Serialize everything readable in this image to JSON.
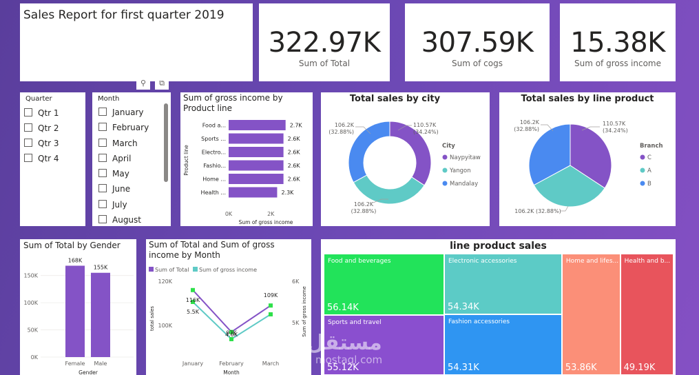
{
  "title_card": {
    "title": "Sales Report for first quarter 2019"
  },
  "kpis": [
    {
      "value": "322.97K",
      "label": "Sum of Total"
    },
    {
      "value": "307.59K",
      "label": "Sum of cogs"
    },
    {
      "value": "15.38K",
      "label": "Sum of gross income"
    }
  ],
  "quarter_slicer": {
    "header": "Quarter",
    "items": [
      "Qtr 1",
      "Qtr 2",
      "Qtr 3",
      "Qtr 4"
    ]
  },
  "month_slicer": {
    "header": "Month",
    "items": [
      "January",
      "February",
      "March",
      "April",
      "May",
      "June",
      "July",
      "August"
    ]
  },
  "visual_header_icons": [
    "filter-icon",
    "focus-mode-icon"
  ],
  "colors": {
    "purple": "#8453c6",
    "teal": "#5fcac6",
    "blue": "#4a8af0",
    "treemap_green": "#22e35a",
    "treemap_teal": "#5ccbc6",
    "treemap_salmon": "#fb8f78",
    "treemap_red": "#e8545c",
    "treemap_purple": "#8a4fcf",
    "treemap_blue": "#2f95f2"
  },
  "chart_data": [
    {
      "id": "gross_by_product",
      "type": "bar",
      "orientation": "horizontal",
      "title": "Sum of gross income by Product line",
      "categories": [
        "Food a...",
        "Sports ...",
        "Electro...",
        "Fashio...",
        "Home ...",
        "Health ..."
      ],
      "values": [
        2.7,
        2.6,
        2.6,
        2.6,
        2.6,
        2.3
      ],
      "data_labels": [
        "2.7K",
        "2.6K",
        "2.6K",
        "2.6K",
        "2.6K",
        "2.3K"
      ],
      "xticks": [
        "0K",
        "2K"
      ],
      "xlim": [
        0,
        3.2
      ],
      "xlabel": "Sum of gross income",
      "ylabel": "Product line"
    },
    {
      "id": "sales_by_city",
      "type": "pie",
      "donut": true,
      "title": "Total sales by city",
      "legend_title": "City",
      "labels": [
        "Naypyitaw",
        "Yangon",
        "Mandalay"
      ],
      "values": [
        110.57,
        106.2,
        106.2
      ],
      "data_labels": [
        [
          "110.57K",
          "(34.24%)"
        ],
        [
          "106.2K",
          "(32.88%)"
        ],
        [
          "106.2K",
          "(32.88%)"
        ]
      ],
      "legend": "right"
    },
    {
      "id": "sales_by_branch",
      "type": "pie",
      "donut": false,
      "title": "Total sales by line product",
      "legend_title": "Branch",
      "labels": [
        "C",
        "A",
        "B"
      ],
      "values": [
        110.57,
        106.2,
        106.2
      ],
      "data_labels": [
        [
          "110.57K",
          "(34.24%)"
        ],
        [
          "106.2K (32.88%)"
        ],
        [
          "106.2K",
          "(32.88%)"
        ]
      ],
      "legend": "right"
    },
    {
      "id": "total_by_gender",
      "type": "bar",
      "title": "Sum of Total by Gender",
      "categories": [
        "Female",
        "Male"
      ],
      "values": [
        168,
        155
      ],
      "data_labels": [
        "168K",
        "155K"
      ],
      "yticks": [
        "0K",
        "50K",
        "100K",
        "150K"
      ],
      "ylim": [
        0,
        180
      ],
      "xlabel": "Gender"
    },
    {
      "id": "total_gross_by_month",
      "type": "line",
      "title": "Sum of Total and Sum of gross income by Month",
      "categories": [
        "January",
        "February",
        "March"
      ],
      "series": [
        {
          "name": "Sum of Total",
          "values": [
            116,
            97,
            109
          ],
          "axis": "left"
        },
        {
          "name": "Sum of gross income",
          "values": [
            5.5,
            4.6,
            5.2
          ],
          "axis": "right"
        }
      ],
      "point_labels": [
        "116K",
        "97K",
        "109K",
        "5.5K",
        "4.6K"
      ],
      "yticks_left": [
        "100K",
        "120K"
      ],
      "ylim_left": [
        90,
        120
      ],
      "yticks_right": [
        "5K",
        "6K"
      ],
      "ylim_right": [
        4.4,
        6
      ],
      "ylabel_left": "total sales",
      "ylabel_right": "Sum of gross income",
      "xlabel": "Month",
      "legend": "top-left"
    },
    {
      "id": "line_product_sales",
      "type": "treemap",
      "title": "line product sales",
      "labels": [
        "Food and beverages",
        "Sports and travel",
        "Electronic accessories",
        "Fashion accessories",
        "Home and lifes...",
        "Health and b..."
      ],
      "values": [
        56.14,
        55.12,
        54.34,
        54.31,
        53.86,
        49.19
      ],
      "data_labels": [
        "56.14K",
        "55.12K",
        "54.34K",
        "54.31K",
        "53.86K",
        "49.19K"
      ]
    }
  ],
  "watermark": {
    "text": "مستقل",
    "sub": "mostaql.com"
  }
}
